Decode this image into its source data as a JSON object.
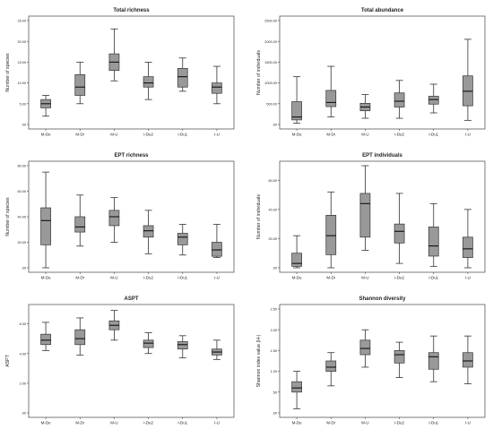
{
  "chart_data": [
    {
      "type": "boxplot",
      "title": "Total richness",
      "xlabel": "",
      "ylabel": "Number of species",
      "ylim": [
        0,
        25
      ],
      "yticks": [
        0,
        5,
        10,
        15,
        20,
        25
      ],
      "yticklabels": [
        ".00",
        "5.00",
        "10.00",
        "15.00",
        "20.00",
        "25.00"
      ],
      "categories": [
        "M-Du",
        "M-Dr",
        "M-U",
        "I-Du2",
        "I-Du1",
        "I-U"
      ],
      "boxes": [
        {
          "min": 2,
          "q1": 4,
          "median": 5,
          "q3": 6,
          "max": 7
        },
        {
          "min": 5,
          "q1": 7,
          "median": 9,
          "q3": 12,
          "max": 15
        },
        {
          "min": 10.5,
          "q1": 13,
          "median": 15,
          "q3": 17,
          "max": 23
        },
        {
          "min": 6,
          "q1": 9,
          "median": 10,
          "q3": 11.5,
          "max": 15
        },
        {
          "min": 8,
          "q1": 9,
          "median": 11.5,
          "q3": 13.5,
          "max": 16
        },
        {
          "min": 5,
          "q1": 7.5,
          "median": 9,
          "q3": 10,
          "max": 14
        }
      ],
      "grid": false
    },
    {
      "type": "boxplot",
      "title": "Total abundance",
      "xlabel": "",
      "ylabel": "Number of individuals",
      "ylim": [
        0,
        2500
      ],
      "yticks": [
        0,
        500,
        1000,
        1500,
        2000,
        2500
      ],
      "yticklabels": [
        ".00",
        "500.00",
        "1000.00",
        "1500.00",
        "2000.00",
        "2500.00"
      ],
      "categories": [
        "M-Du",
        "M-Dr",
        "M-U",
        "I-Du2",
        "I-Du1",
        "I-U"
      ],
      "boxes": [
        {
          "min": 30,
          "q1": 110,
          "median": 180,
          "q3": 550,
          "max": 1150
        },
        {
          "min": 180,
          "q1": 430,
          "median": 530,
          "q3": 820,
          "max": 1400
        },
        {
          "min": 150,
          "q1": 330,
          "median": 420,
          "q3": 510,
          "max": 720
        },
        {
          "min": 150,
          "q1": 420,
          "median": 560,
          "q3": 760,
          "max": 1060
        },
        {
          "min": 280,
          "q1": 490,
          "median": 600,
          "q3": 680,
          "max": 970
        },
        {
          "min": 100,
          "q1": 450,
          "median": 800,
          "q3": 1170,
          "max": 2050
        }
      ],
      "grid": false
    },
    {
      "type": "boxplot",
      "title": "EPT richness",
      "xlabel": "",
      "ylabel": "Number of species",
      "ylim": [
        0,
        80
      ],
      "yticks": [
        0,
        20,
        40,
        60,
        80
      ],
      "yticklabels": [
        ".00",
        "20.00",
        "40.00",
        "60.00",
        "80.00"
      ],
      "categories": [
        "M-Du",
        "M-Dr",
        "M-U",
        "I-Du2",
        "I-Du1",
        "I-U"
      ],
      "boxes": [
        {
          "min": 0,
          "q1": 18,
          "median": 37,
          "q3": 47,
          "max": 75
        },
        {
          "min": 17,
          "q1": 28,
          "median": 32,
          "q3": 40,
          "max": 57
        },
        {
          "min": 20,
          "q1": 33,
          "median": 40,
          "q3": 45,
          "max": 55
        },
        {
          "min": 11,
          "q1": 24,
          "median": 29,
          "q3": 33,
          "max": 45
        },
        {
          "min": 10,
          "q1": 18,
          "median": 24,
          "q3": 27,
          "max": 34
        },
        {
          "min": 8,
          "q1": 9,
          "median": 14,
          "q3": 20,
          "max": 34
        }
      ],
      "grid": false
    },
    {
      "type": "boxplot",
      "title": "EPT individuals",
      "xlabel": "",
      "ylabel": "Number of individuals",
      "ylim": [
        0,
        70
      ],
      "yticks": [
        0,
        20,
        40,
        60
      ],
      "yticklabels": [
        ".00",
        "20.00",
        "40.00",
        "60.00"
      ],
      "categories": [
        "M-Du",
        "M-Dr",
        "M-U",
        "I-Du2",
        "I-Du1",
        "I-U"
      ],
      "boxes": [
        {
          "min": 0,
          "q1": 1,
          "median": 3,
          "q3": 10,
          "max": 22
        },
        {
          "min": 0,
          "q1": 9,
          "median": 22,
          "q3": 36,
          "max": 52
        },
        {
          "min": 12,
          "q1": 21,
          "median": 44,
          "q3": 51,
          "max": 70
        },
        {
          "min": 3,
          "q1": 17,
          "median": 25,
          "q3": 30,
          "max": 51
        },
        {
          "min": 1,
          "q1": 8,
          "median": 15,
          "q3": 28,
          "max": 44
        },
        {
          "min": 0,
          "q1": 7,
          "median": 13,
          "q3": 21,
          "max": 40
        }
      ],
      "grid": false
    },
    {
      "type": "boxplot",
      "title": "ASPT",
      "xlabel": "",
      "ylabel": "ASPT",
      "ylim": [
        0,
        7
      ],
      "yticks": [
        0,
        2,
        4,
        6
      ],
      "yticklabels": [
        ".00",
        "2.00",
        "4.00",
        "6.00"
      ],
      "categories": [
        "M-Du",
        "M-Dr",
        "M-U",
        "I-Du2",
        "I-Du1",
        "I-U"
      ],
      "boxes": [
        {
          "min": 4.2,
          "q1": 4.6,
          "median": 4.9,
          "q3": 5.3,
          "max": 6.1
        },
        {
          "min": 3.9,
          "q1": 4.6,
          "median": 5.0,
          "q3": 5.6,
          "max": 6.4
        },
        {
          "min": 4.9,
          "q1": 5.6,
          "median": 5.9,
          "q3": 6.2,
          "max": 6.9
        },
        {
          "min": 4.0,
          "q1": 4.4,
          "median": 4.7,
          "q3": 4.9,
          "max": 5.4
        },
        {
          "min": 3.7,
          "q1": 4.3,
          "median": 4.6,
          "q3": 4.8,
          "max": 5.2
        },
        {
          "min": 3.6,
          "q1": 3.9,
          "median": 4.1,
          "q3": 4.3,
          "max": 4.9
        }
      ],
      "grid": false
    },
    {
      "type": "boxplot",
      "title": "Shannon diversity",
      "xlabel": "",
      "ylabel": "Shannon index value (H-)",
      "ylim": [
        0,
        2.5
      ],
      "yticks": [
        0,
        0.5,
        1.0,
        1.5,
        2.0,
        2.5
      ],
      "yticklabels": [
        ".00",
        ".50",
        "1.00",
        "1.50",
        "2.00",
        "2.50"
      ],
      "categories": [
        "M-Du",
        "M-Dr",
        "M-U",
        "I-Du2",
        "I-Du1",
        "I-U"
      ],
      "boxes": [
        {
          "min": 0.1,
          "q1": 0.5,
          "median": 0.6,
          "q3": 0.75,
          "max": 1.0
        },
        {
          "min": 0.65,
          "q1": 1.0,
          "median": 1.1,
          "q3": 1.25,
          "max": 1.45
        },
        {
          "min": 1.1,
          "q1": 1.4,
          "median": 1.55,
          "q3": 1.75,
          "max": 2.0
        },
        {
          "min": 0.85,
          "q1": 1.2,
          "median": 1.4,
          "q3": 1.5,
          "max": 1.7
        },
        {
          "min": 0.75,
          "q1": 1.05,
          "median": 1.35,
          "q3": 1.45,
          "max": 1.85
        },
        {
          "min": 0.7,
          "q1": 1.1,
          "median": 1.25,
          "q3": 1.45,
          "max": 1.85
        }
      ],
      "grid": false
    }
  ],
  "style": {
    "box_fill": "#999999",
    "box_stroke": "#333333",
    "frame_stroke": "#444444",
    "text_color": "#222222"
  }
}
